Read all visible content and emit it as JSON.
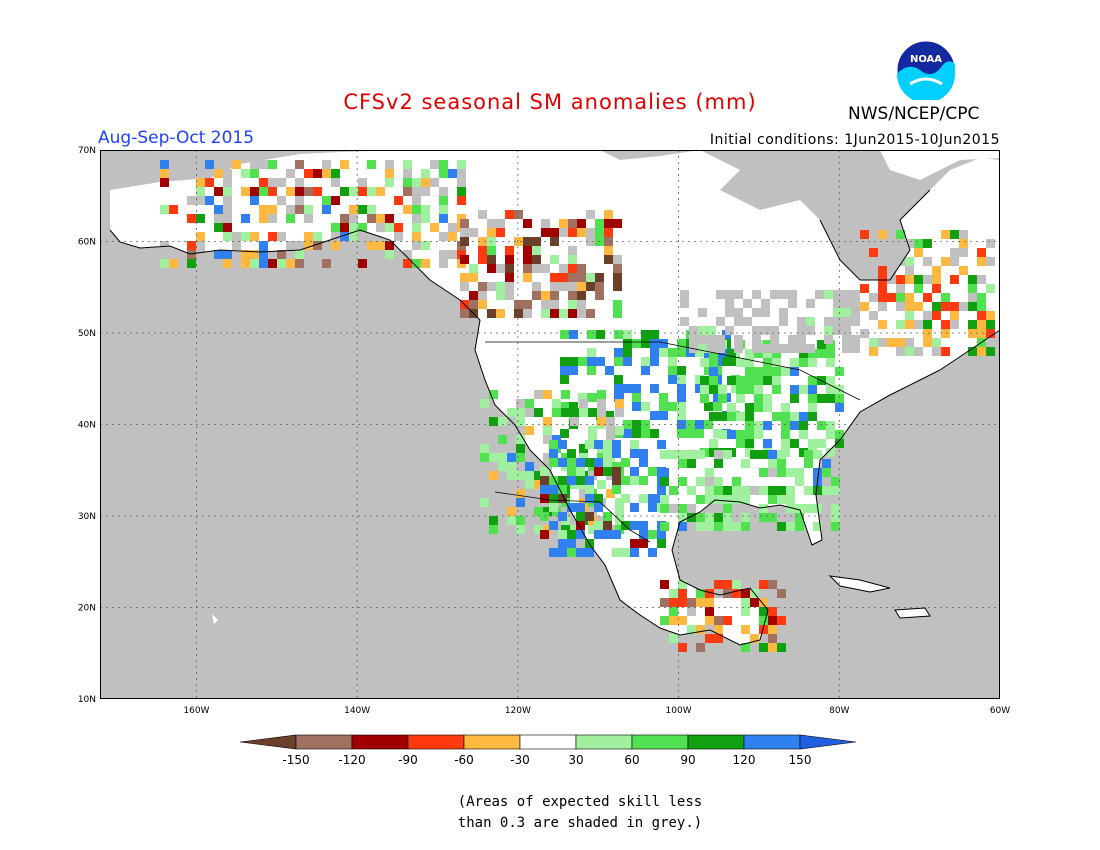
{
  "header": {
    "title": "CFSv2 seasonal SM anomalies (mm)",
    "period": "Aug-Sep-Oct 2015",
    "initial_conditions": "Initial conditions: 1Jun2015-10Jun2015",
    "agency": "NWS/NCEP/CPC",
    "logo_text": "NOAA"
  },
  "map": {
    "lon_range": [
      -172,
      -60
    ],
    "lat_range": [
      10,
      70
    ],
    "lat_labels": [
      "70N",
      "60N",
      "50N",
      "40N",
      "30N",
      "20N",
      "10N"
    ],
    "lon_labels": [
      "160W",
      "140W",
      "120W",
      "100W",
      "80W",
      "60W"
    ],
    "ocean_color": "#c0c0c0",
    "land_color": "#ffffff"
  },
  "legend": {
    "labels": [
      "-150",
      "-120",
      "-90",
      "-60",
      "-30",
      "30",
      "60",
      "90",
      "120",
      "150"
    ],
    "colors": {
      "lt_-150": "#6b3f2a",
      "-150_-120": "#a07060",
      "-120_-90": "#a00000",
      "-90_-60": "#ff3a10",
      "-60_-30": "#ffb840",
      "-30_30": "#ffffff",
      "30_60": "#a0f0a0",
      "60_90": "#50e050",
      "90_120": "#10a010",
      "120_150": "#3080f0",
      "gt_150": "#2060e0"
    }
  },
  "footnote": {
    "line1": "(Areas of expected skill less",
    "line2": "than 0.3 are shaded in grey.)"
  }
}
